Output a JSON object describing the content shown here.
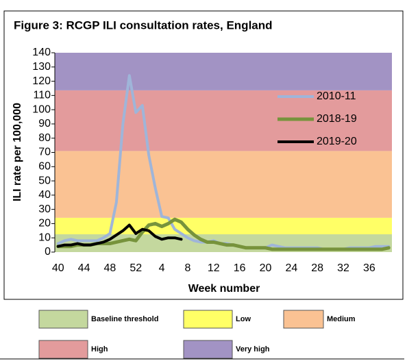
{
  "chart_data": {
    "type": "line",
    "title": "Figure 3: RCGP ILI consultation rates, England",
    "x_label": "Week number",
    "y_label": "ILI rate per 100,000",
    "categories": [
      40,
      null,
      null,
      null,
      44,
      null,
      null,
      null,
      48,
      null,
      null,
      null,
      52,
      null,
      null,
      null,
      4,
      null,
      null,
      null,
      8,
      null,
      null,
      null,
      12,
      null,
      null,
      null,
      16,
      null,
      null,
      null,
      20,
      null,
      null,
      null,
      24,
      null,
      null,
      null,
      28,
      null,
      null,
      null,
      32,
      null,
      null,
      null,
      36,
      null,
      null,
      null
    ],
    "series": [
      {
        "name": "2010-11",
        "color": "#9fb5d9",
        "width": 4,
        "values": [
          6,
          8,
          9,
          8,
          8,
          8,
          8,
          10,
          13,
          35,
          90,
          124,
          98,
          103,
          68,
          45,
          25,
          24,
          16,
          13,
          10,
          8,
          7,
          7,
          8,
          6,
          6,
          5,
          4,
          3,
          3,
          3,
          3,
          5,
          4,
          3,
          3,
          3,
          3,
          3,
          3,
          2,
          2,
          2,
          2,
          3,
          3,
          3,
          3,
          4,
          4,
          4
        ]
      },
      {
        "name": "2018-19",
        "color": "#77933c",
        "width": 5,
        "values": [
          4,
          4,
          4,
          5,
          5,
          5,
          6,
          6,
          6,
          7,
          8,
          9,
          8,
          14,
          19,
          20,
          18,
          20,
          23,
          21,
          16,
          12,
          9,
          7,
          7,
          6,
          5,
          5,
          4,
          3,
          3,
          3,
          3,
          2,
          2,
          2,
          2,
          2,
          2,
          2,
          2,
          2,
          2,
          2,
          2,
          2,
          2,
          2,
          2,
          2,
          2,
          3
        ]
      },
      {
        "name": "2019-20",
        "color": "#000000",
        "width": 4,
        "values": [
          4,
          5,
          5,
          6,
          5,
          5,
          6,
          7,
          9,
          12,
          15,
          19,
          13,
          16,
          15,
          11,
          9,
          10,
          10,
          9,
          null,
          null,
          null,
          null,
          null,
          null,
          null,
          null,
          null,
          null,
          null,
          null,
          null,
          null,
          null,
          null,
          null,
          null,
          null,
          null,
          null,
          null,
          null,
          null,
          null,
          null,
          null,
          null,
          null,
          null,
          null,
          null
        ]
      }
    ],
    "bands": [
      {
        "name": "Baseline threshold",
        "color": "#c4d89e",
        "range": [
          0,
          12.5
        ]
      },
      {
        "name": "Low",
        "color": "#ffff66",
        "range": [
          12.5,
          24.1
        ]
      },
      {
        "name": "Medium",
        "color": "#fac293",
        "range": [
          24.1,
          71
        ]
      },
      {
        "name": "High",
        "color": "#e39b9c",
        "range": [
          71,
          113.6
        ]
      },
      {
        "name": "Very high",
        "color": "#a293c4",
        "range": [
          113.6,
          140
        ]
      }
    ],
    "ylim": [
      0,
      140
    ],
    "yticks": [
      0,
      10,
      20,
      30,
      40,
      50,
      60,
      70,
      80,
      90,
      100,
      110,
      120,
      130,
      140
    ],
    "grid": false
  }
}
